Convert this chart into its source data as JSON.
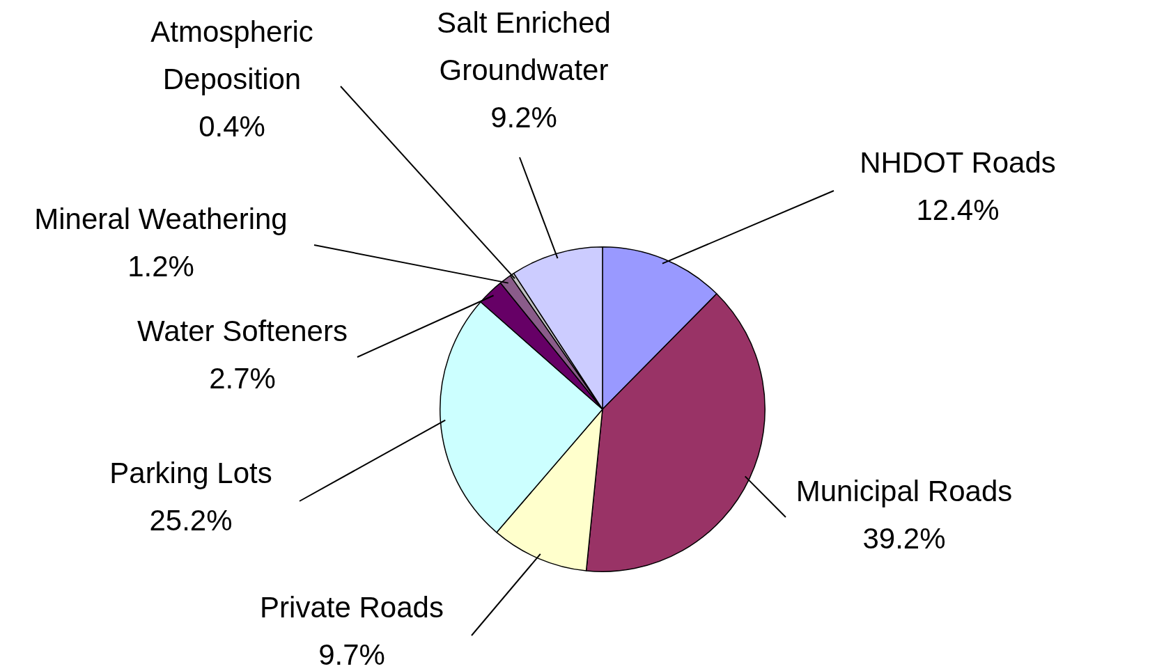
{
  "chart_data": {
    "type": "pie",
    "categories": [
      "NHDOT Roads",
      "Municipal Roads",
      "Private Roads",
      "Parking Lots",
      "Water Softeners",
      "Mineral Weathering",
      "Atmospheric Deposition",
      "Salt Enriched Groundwater"
    ],
    "values": [
      12.4,
      39.2,
      9.7,
      25.2,
      2.7,
      1.2,
      0.4,
      9.2
    ],
    "value_labels": [
      "12.4%",
      "39.2%",
      "9.7%",
      "25.2%",
      "2.7%",
      "1.2%",
      "0.4%",
      "9.2%"
    ],
    "colors": [
      "#9999ff",
      "#993366",
      "#ffffcc",
      "#ccffff",
      "#660066",
      "#8a5c8a",
      "#c0c0c0",
      "#ccccff"
    ],
    "legend": false
  }
}
